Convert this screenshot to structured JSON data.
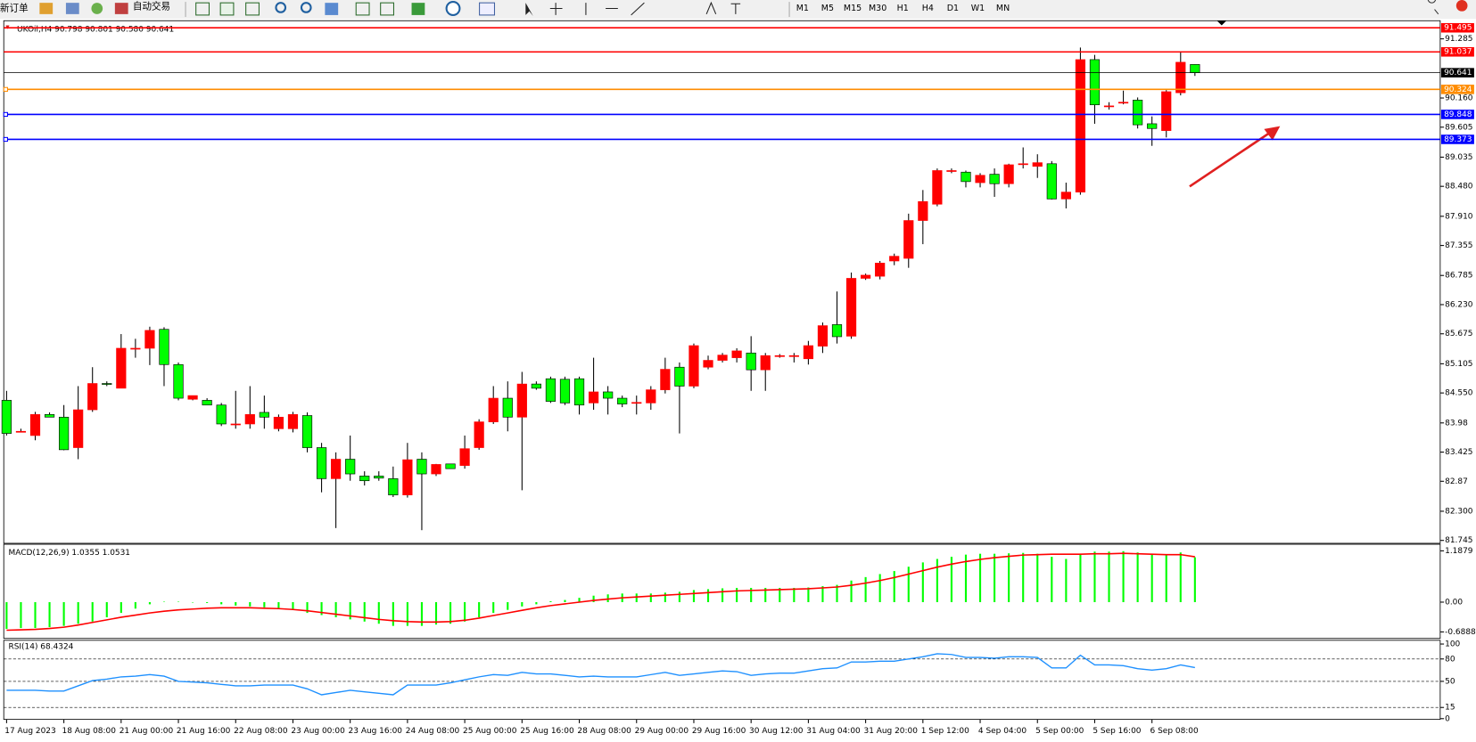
{
  "toolbar": {
    "new_order": "新订单",
    "auto_trading": "自动交易",
    "timeframes": [
      "M1",
      "M5",
      "M15",
      "M30",
      "H1",
      "H4",
      "D1",
      "W1",
      "MN"
    ]
  },
  "chart_data": [
    {
      "type": "candlestick",
      "title": "UKOil,H4  90.798 90.801 90.580 90.641",
      "categories": [
        "17 Aug 2023",
        null,
        null,
        null,
        "18 Aug 08:00",
        null,
        null,
        null,
        "21 Aug 00:00",
        null,
        null,
        null,
        "21 Aug 16:00",
        null,
        null,
        null,
        "22 Aug 08:00",
        null,
        null,
        null,
        "23 Aug 00:00",
        null,
        null,
        null,
        "23 Aug 16:00",
        null,
        null,
        null,
        "24 Aug 08:00",
        null,
        null,
        null,
        "25 Aug 00:00",
        null,
        null,
        null,
        "25 Aug 16:00",
        null,
        null,
        null,
        "28 Aug 08:00",
        null,
        null,
        null,
        "29 Aug 00:00",
        null,
        null,
        null,
        "29 Aug 16:00",
        null,
        null,
        null,
        "30 Aug 12:00",
        null,
        null,
        null,
        "31 Aug 04:00",
        null,
        null,
        null,
        "31 Aug 20:00",
        null,
        null,
        null,
        "1 Sep 12:00",
        null,
        null,
        null,
        "4 Sep 04:00",
        null,
        null,
        null,
        "5 Sep 00:00",
        null,
        null,
        null,
        "5 Sep 16:00",
        null,
        null,
        null,
        "6 Sep 08:00",
        null,
        null,
        null
      ],
      "open": [
        84.41,
        83.82,
        83.74,
        84.14,
        84.09,
        83.51,
        84.23,
        84.73,
        84.64,
        85.4,
        85.4,
        85.76,
        85.09,
        84.43,
        84.41,
        84.32,
        83.96,
        83.96,
        84.18,
        83.87,
        83.87,
        84.12,
        83.51,
        82.92,
        83.29,
        82.97,
        82.97,
        82.92,
        82.61,
        83.29,
        83.01,
        83.2,
        83.17,
        83.51,
        84.0,
        84.45,
        84.09,
        84.72,
        84.82,
        84.81,
        84.82,
        84.36,
        84.57,
        84.45,
        84.37,
        84.36,
        84.61,
        85.04,
        84.68,
        85.04,
        85.17,
        85.22,
        85.31,
        84.99,
        85.26,
        85.26,
        85.2,
        85.44,
        85.85,
        85.63,
        86.73,
        86.77,
        87.06,
        87.11,
        87.83,
        88.14,
        88.78,
        88.75,
        88.55,
        88.71,
        88.53,
        88.91,
        88.86,
        88.91,
        88.24,
        88.37,
        90.89,
        90.01,
        90.08,
        90.12,
        89.67,
        89.54,
        90.26,
        90.798
      ],
      "high": [
        84.59,
        83.87,
        84.19,
        84.18,
        84.32,
        84.68,
        85.04,
        84.77,
        85.67,
        85.58,
        85.81,
        85.8,
        85.13,
        84.5,
        84.45,
        84.36,
        84.59,
        84.68,
        84.5,
        84.14,
        84.19,
        84.18,
        83.6,
        83.42,
        83.74,
        83.06,
        83.06,
        83.15,
        83.6,
        83.42,
        83.2,
        83.2,
        83.74,
        84.05,
        84.68,
        84.77,
        84.95,
        84.77,
        84.86,
        84.86,
        84.86,
        85.22,
        84.68,
        84.5,
        84.5,
        84.68,
        85.22,
        85.13,
        85.49,
        85.26,
        85.31,
        85.4,
        85.63,
        85.31,
        85.29,
        85.31,
        85.54,
        85.89,
        86.48,
        86.84,
        86.82,
        87.06,
        87.2,
        87.96,
        88.41,
        88.82,
        88.82,
        88.78,
        88.73,
        88.82,
        88.91,
        89.22,
        89.09,
        88.96,
        88.55,
        91.12,
        90.98,
        90.08,
        90.3,
        90.17,
        89.81,
        90.31,
        91.05,
        90.801
      ],
      "low": [
        83.74,
        83.8,
        83.65,
        84.09,
        83.46,
        83.29,
        84.19,
        84.68,
        84.64,
        85.22,
        85.08,
        84.68,
        84.41,
        84.41,
        84.32,
        83.92,
        83.87,
        83.87,
        83.87,
        83.82,
        83.8,
        83.42,
        82.66,
        81.98,
        82.88,
        82.79,
        82.88,
        82.57,
        82.56,
        81.94,
        82.97,
        83.11,
        83.11,
        83.47,
        83.96,
        83.82,
        82.7,
        84.61,
        84.36,
        84.32,
        84.14,
        84.23,
        84.14,
        84.28,
        84.14,
        84.23,
        84.54,
        83.78,
        84.64,
        85.0,
        85.13,
        85.13,
        84.59,
        84.59,
        85.22,
        85.13,
        85.09,
        85.31,
        85.49,
        85.58,
        86.7,
        86.71,
        86.98,
        86.93,
        87.38,
        88.1,
        88.73,
        88.46,
        88.46,
        88.28,
        88.46,
        88.82,
        88.64,
        88.23,
        88.06,
        88.32,
        89.67,
        89.94,
        90.04,
        89.58,
        89.25,
        89.41,
        90.21,
        90.58
      ],
      "close": [
        83.78,
        83.82,
        84.14,
        84.09,
        83.47,
        84.23,
        84.73,
        84.72,
        85.4,
        85.4,
        85.74,
        85.09,
        84.45,
        84.5,
        84.32,
        83.96,
        83.96,
        84.14,
        84.09,
        84.09,
        84.14,
        83.51,
        82.92,
        83.29,
        83.01,
        82.88,
        82.93,
        82.61,
        83.28,
        83.01,
        83.19,
        83.11,
        83.49,
        84.0,
        84.45,
        84.09,
        84.72,
        84.64,
        84.39,
        84.36,
        84.32,
        84.57,
        84.45,
        84.34,
        84.37,
        84.61,
        85.0,
        84.68,
        85.45,
        85.17,
        85.27,
        85.35,
        84.99,
        85.26,
        85.26,
        85.26,
        85.45,
        85.83,
        85.62,
        86.73,
        86.79,
        87.02,
        87.15,
        87.83,
        88.19,
        88.78,
        88.78,
        88.57,
        88.69,
        88.53,
        88.89,
        88.91,
        88.93,
        88.24,
        88.37,
        90.89,
        90.03,
        90.01,
        90.08,
        89.65,
        89.58,
        90.28,
        90.84,
        90.641
      ],
      "up_color": "#ff0000",
      "down_color": "#00ff00",
      "ylim": [
        81.69,
        91.63
      ],
      "yticks": [
        91.285,
        {
          "value": 90.16,
          "label": "90.160"
        },
        89.605,
        89.035,
        {
          "value": 88.48,
          "label": "88.480"
        },
        {
          "value": 87.91,
          "label": "87.910"
        },
        87.355,
        86.785,
        {
          "value": 86.23,
          "label": "86.230"
        },
        85.675,
        85.105,
        {
          "value": 84.55,
          "label": "84.550"
        },
        83.98,
        83.425,
        82.87,
        {
          "value": 82.3,
          "label": "82.300"
        },
        81.745
      ],
      "levels": [
        {
          "value": 91.495,
          "color": "#ff0000"
        },
        {
          "value": 91.037,
          "color": "#ff0000"
        },
        {
          "value": 90.641,
          "color": "#000000"
        },
        {
          "value": 90.324,
          "color": "#ff8c00"
        },
        {
          "value": 89.848,
          "color": "#0000ff"
        },
        {
          "value": 89.373,
          "color": "#0000ff"
        }
      ]
    },
    {
      "type": "macd",
      "title": "MACD(12,26,9) 1.0355 1.0531",
      "histogram": {
        "color": "#00ff00",
        "values": [
          -0.62,
          -0.6,
          -0.6,
          -0.58,
          -0.55,
          -0.5,
          -0.45,
          -0.35,
          -0.25,
          -0.15,
          -0.05,
          0.01,
          0.01,
          -0.01,
          -0.02,
          -0.05,
          -0.08,
          -0.1,
          -0.12,
          -0.15,
          -0.18,
          -0.25,
          -0.3,
          -0.35,
          -0.4,
          -0.45,
          -0.5,
          -0.55,
          -0.55,
          -0.55,
          -0.52,
          -0.5,
          -0.45,
          -0.35,
          -0.25,
          -0.18,
          -0.1,
          -0.05,
          0.02,
          0.05,
          0.1,
          0.15,
          0.18,
          0.2,
          0.2,
          0.2,
          0.22,
          0.24,
          0.28,
          0.3,
          0.32,
          0.33,
          0.33,
          0.33,
          0.33,
          0.33,
          0.34,
          0.37,
          0.4,
          0.5,
          0.58,
          0.65,
          0.72,
          0.82,
          0.92,
          1.0,
          1.05,
          1.1,
          1.12,
          1.12,
          1.13,
          1.14,
          1.12,
          1.05,
          1.0,
          1.12,
          1.17,
          1.17,
          1.18,
          1.15,
          1.1,
          1.1,
          1.15,
          1.04
        ]
      },
      "signal": {
        "color": "#ff0000",
        "values": [
          -0.65,
          -0.64,
          -0.63,
          -0.61,
          -0.58,
          -0.53,
          -0.47,
          -0.41,
          -0.35,
          -0.3,
          -0.25,
          -0.21,
          -0.18,
          -0.16,
          -0.14,
          -0.13,
          -0.13,
          -0.13,
          -0.14,
          -0.15,
          -0.17,
          -0.2,
          -0.24,
          -0.28,
          -0.32,
          -0.36,
          -0.4,
          -0.43,
          -0.45,
          -0.46,
          -0.46,
          -0.45,
          -0.42,
          -0.37,
          -0.31,
          -0.25,
          -0.19,
          -0.13,
          -0.08,
          -0.04,
          0.0,
          0.04,
          0.07,
          0.1,
          0.12,
          0.14,
          0.16,
          0.18,
          0.2,
          0.22,
          0.24,
          0.26,
          0.27,
          0.28,
          0.29,
          0.3,
          0.31,
          0.33,
          0.35,
          0.39,
          0.44,
          0.5,
          0.57,
          0.65,
          0.73,
          0.81,
          0.88,
          0.94,
          0.99,
          1.03,
          1.06,
          1.09,
          1.1,
          1.11,
          1.11,
          1.11,
          1.12,
          1.12,
          1.13,
          1.12,
          1.11,
          1.1,
          1.1,
          1.05
        ]
      },
      "ylim": [
        -0.84,
        1.34
      ],
      "yticks": [
        1.1879,
        {
          "value": 0,
          "label": "0.00"
        },
        -0.6888
      ]
    },
    {
      "type": "line",
      "title": "RSI(14) 68.4324",
      "color": "#1e90ff",
      "values": [
        38,
        38,
        38,
        37,
        37,
        44,
        51,
        53,
        56,
        57,
        59,
        57,
        50,
        49,
        48,
        46,
        44,
        44,
        45,
        45,
        45,
        40,
        32,
        35,
        38,
        36,
        34,
        32,
        45,
        45,
        45,
        48,
        52,
        56,
        59,
        58,
        62,
        60,
        60,
        58,
        56,
        57,
        56,
        56,
        56,
        59,
        62,
        58,
        60,
        62,
        64,
        63,
        58,
        60,
        61,
        61,
        64,
        67,
        68,
        76,
        76,
        77,
        77,
        80,
        83,
        87,
        86,
        82,
        82,
        81,
        83,
        83,
        82,
        68,
        68,
        85,
        72,
        72,
        71,
        67,
        65,
        67,
        72,
        68.43
      ],
      "ylim": [
        -1,
        105
      ],
      "yticks": [
        100,
        80,
        50,
        15,
        0
      ],
      "levels": [
        80,
        50,
        15
      ]
    }
  ]
}
